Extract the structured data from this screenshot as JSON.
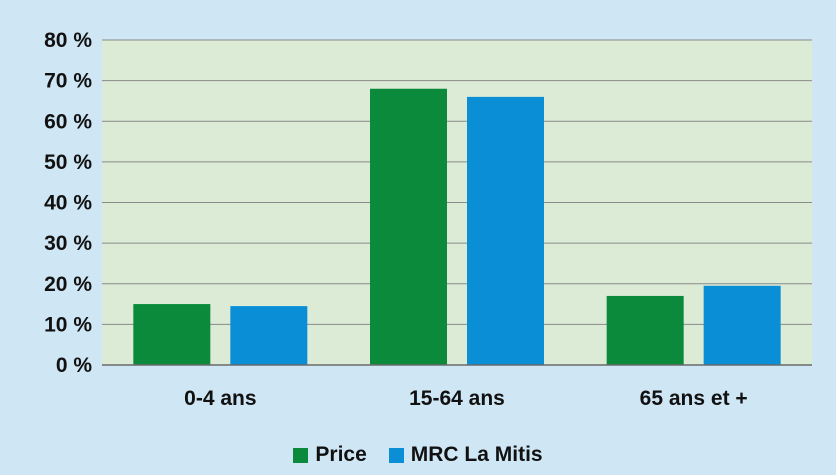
{
  "chart_data": {
    "type": "bar",
    "title": "",
    "xlabel": "",
    "ylabel": "",
    "categories": [
      "0-4 ans",
      "15-64 ans",
      "65 ans et +"
    ],
    "series": [
      {
        "name": "Price",
        "values": [
          15,
          68,
          17
        ],
        "color": "#0a8a3a"
      },
      {
        "name": "MRC La Mitis",
        "values": [
          14.5,
          66,
          19.5
        ],
        "color": "#0a8fd6"
      }
    ],
    "ylim": [
      0,
      80
    ],
    "yticks": [
      0,
      10,
      20,
      30,
      40,
      50,
      60,
      70,
      80
    ],
    "ytick_labels": [
      "0 %",
      "10 %",
      "20 %",
      "30 %",
      "40 %",
      "50 %",
      "60 %",
      "70 %",
      "80 %"
    ],
    "grid": true,
    "legend_position": "bottom",
    "colors": {
      "background": "#cfe6f4",
      "plot_background": "#dcebd6",
      "gridline": "#8a8a8a"
    }
  }
}
